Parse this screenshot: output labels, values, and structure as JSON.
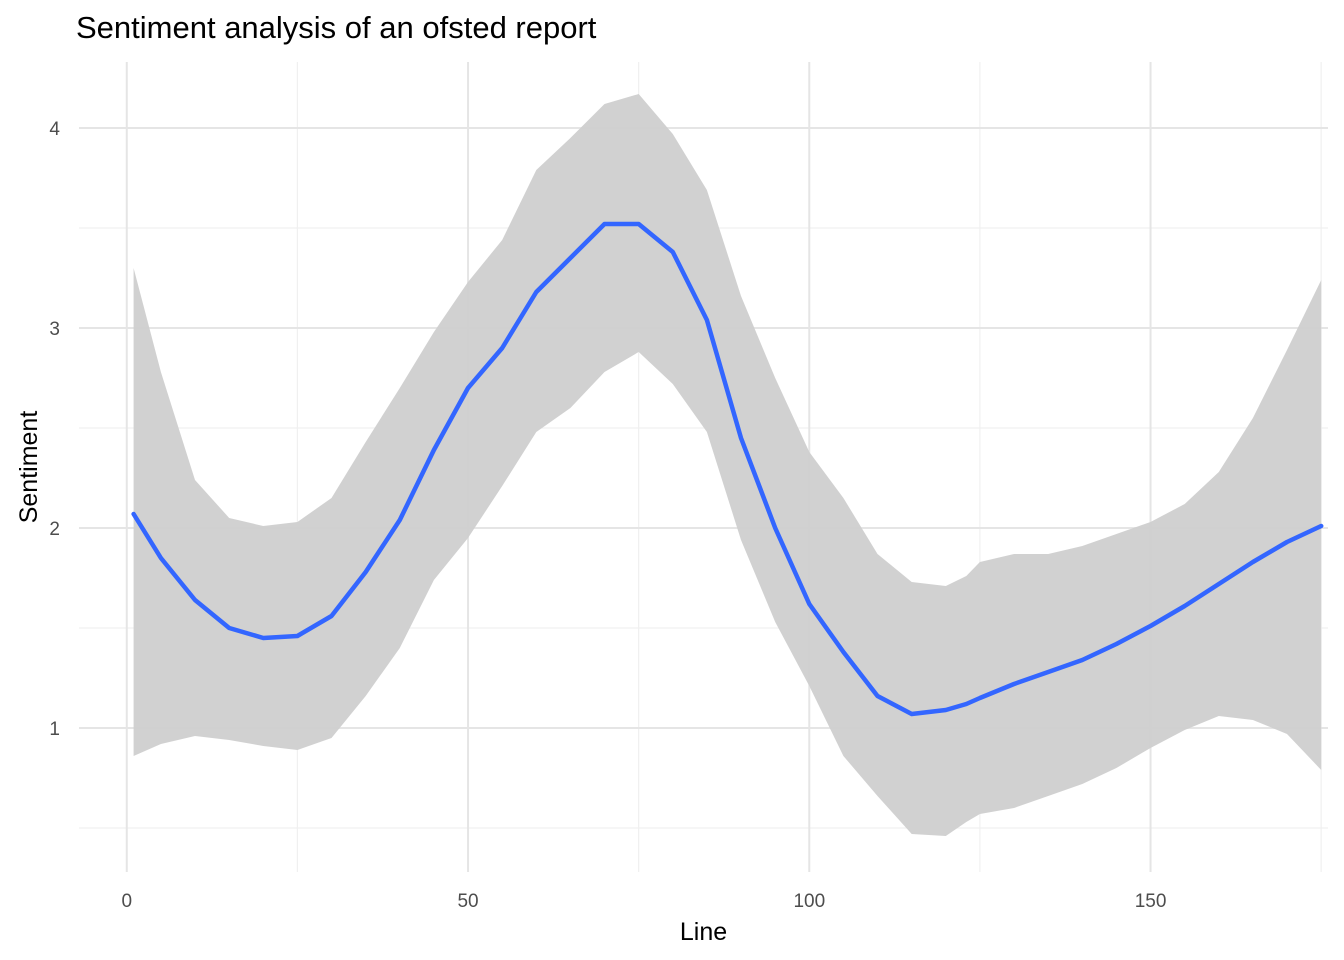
{
  "chart_data": {
    "type": "line",
    "title": "Sentiment analysis of an ofsted report",
    "xlabel": "Line",
    "ylabel": "Sentiment",
    "xlim": [
      -7,
      176
    ],
    "ylim": [
      0.28,
      4.33
    ],
    "x_ticks": [
      0,
      50,
      100,
      150
    ],
    "x_minor": [
      25,
      75,
      125,
      175
    ],
    "y_ticks": [
      1,
      2,
      3,
      4
    ],
    "y_minor": [
      0.5,
      1.5,
      2.5,
      3.5
    ],
    "grid": true,
    "legend": "none",
    "colors": {
      "line": "#3366ff",
      "band": "#cfcfcf",
      "grid_major": "#e5e5e5",
      "grid_minor": "#f0f0f0"
    },
    "series": [
      {
        "x": [
          1,
          5,
          10,
          15,
          20,
          25,
          30,
          35,
          40,
          45,
          50,
          55,
          60,
          65,
          70,
          75,
          80,
          85,
          90,
          95,
          100,
          105,
          110,
          115,
          120,
          123,
          125,
          130,
          135,
          140,
          145,
          150,
          155,
          160,
          165,
          170,
          175
        ],
        "y": [
          2.07,
          1.85,
          1.64,
          1.5,
          1.45,
          1.46,
          1.56,
          1.78,
          2.04,
          2.39,
          2.7,
          2.9,
          3.18,
          3.35,
          3.52,
          3.52,
          3.38,
          3.04,
          2.45,
          2.0,
          1.62,
          1.38,
          1.16,
          1.07,
          1.09,
          1.12,
          1.15,
          1.22,
          1.28,
          1.34,
          1.42,
          1.51,
          1.61,
          1.72,
          1.83,
          1.93,
          2.01
        ],
        "lower": [
          0.86,
          0.92,
          0.96,
          0.94,
          0.91,
          0.89,
          0.95,
          1.16,
          1.4,
          1.74,
          1.95,
          2.21,
          2.48,
          2.6,
          2.78,
          2.88,
          2.72,
          2.48,
          1.94,
          1.53,
          1.21,
          0.86,
          0.66,
          0.47,
          0.46,
          0.53,
          0.57,
          0.6,
          0.66,
          0.72,
          0.8,
          0.9,
          0.99,
          1.06,
          1.04,
          0.97,
          0.79
        ],
        "upper": [
          3.3,
          2.78,
          2.24,
          2.05,
          2.01,
          2.03,
          2.15,
          2.43,
          2.7,
          2.98,
          3.23,
          3.44,
          3.79,
          3.95,
          4.12,
          4.17,
          3.97,
          3.69,
          3.16,
          2.75,
          2.38,
          2.15,
          1.87,
          1.73,
          1.71,
          1.76,
          1.83,
          1.87,
          1.87,
          1.91,
          1.97,
          2.03,
          2.12,
          2.28,
          2.55,
          2.89,
          3.24
        ]
      }
    ]
  }
}
